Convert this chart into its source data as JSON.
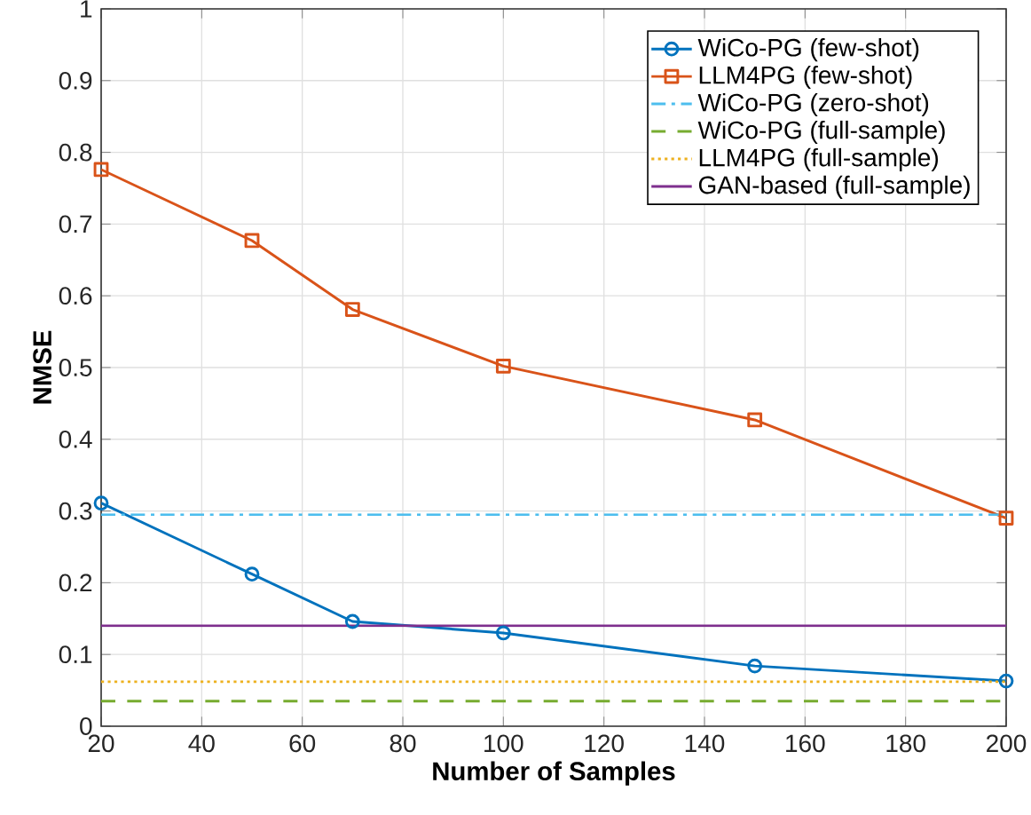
{
  "chart_data": {
    "type": "line",
    "xlabel": "Number of Samples",
    "ylabel": "NMSE",
    "xlim": [
      20,
      200
    ],
    "xticks": [
      20,
      40,
      60,
      80,
      100,
      120,
      140,
      160,
      180,
      200
    ],
    "ylim": [
      0,
      1
    ],
    "yticks": [
      0,
      0.1,
      0.2,
      0.3,
      0.4,
      0.5,
      0.6,
      0.7,
      0.8,
      0.9,
      1
    ],
    "grid": true,
    "legend": "top right",
    "series": [
      {
        "name": "WiCo-PG (few-shot)",
        "color": "#0072bd",
        "marker": "circle",
        "line_style": "solid",
        "x": [
          20,
          50,
          70,
          100,
          150,
          200
        ],
        "values": [
          0.311,
          0.212,
          0.146,
          0.13,
          0.084,
          0.063
        ]
      },
      {
        "name": "LLM4PG (few-shot)",
        "color": "#d95319",
        "marker": "square",
        "line_style": "solid",
        "x": [
          20,
          50,
          70,
          100,
          150,
          200
        ],
        "values": [
          0.776,
          0.677,
          0.581,
          0.502,
          0.427,
          0.29
        ]
      },
      {
        "name": "WiCo-PG (zero-shot)",
        "color": "#4dbeee",
        "marker": "none",
        "line_style": "dashdot",
        "x": [
          20,
          200
        ],
        "values": [
          0.295,
          0.295
        ]
      },
      {
        "name": "WiCo-PG (full-sample)",
        "color": "#77ac30",
        "marker": "none",
        "line_style": "dashed",
        "x": [
          20,
          200
        ],
        "values": [
          0.035,
          0.035
        ]
      },
      {
        "name": "LLM4PG (full-sample)",
        "color": "#edb120",
        "marker": "none",
        "line_style": "dotted",
        "x": [
          20,
          200
        ],
        "values": [
          0.062,
          0.062
        ]
      },
      {
        "name": "GAN-based (full-sample)",
        "color": "#7e2f8e",
        "marker": "none",
        "line_style": "solid",
        "x": [
          20,
          200
        ],
        "values": [
          0.14,
          0.14
        ]
      }
    ]
  }
}
